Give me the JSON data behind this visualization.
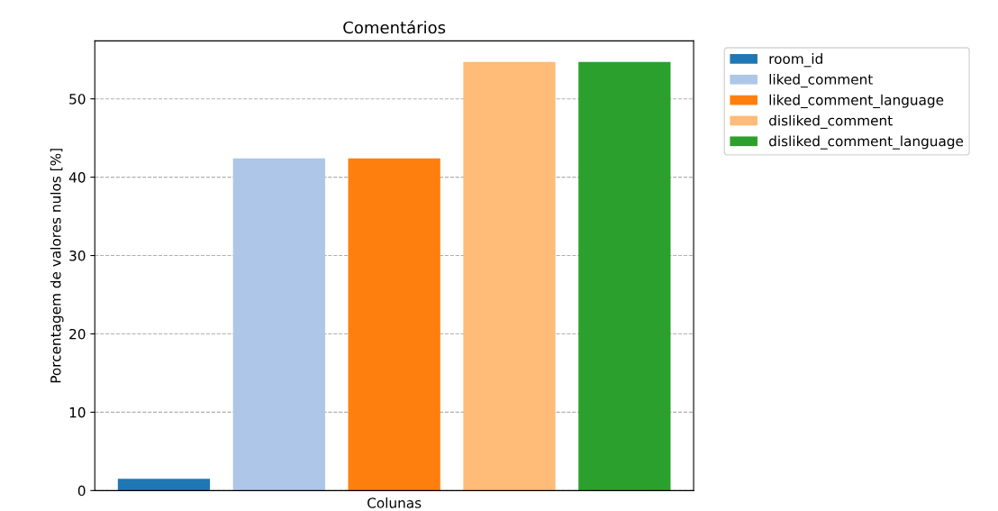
{
  "chart_data": {
    "type": "bar",
    "title": "Comentários",
    "xlabel": "Colunas",
    "ylabel": "Porcentagem de valores nulos [%]",
    "categories": [
      null,
      null,
      null,
      null,
      null
    ],
    "series": [
      {
        "name": "room_id",
        "color": "#1f77b4",
        "values": [
          1.5,
          null,
          null,
          null,
          null
        ]
      },
      {
        "name": "liked_comment",
        "color": "#aec7e8",
        "values": [
          null,
          42.4,
          null,
          null,
          null
        ]
      },
      {
        "name": "liked_comment_language",
        "color": "#ff7f0e",
        "values": [
          null,
          null,
          42.4,
          null,
          null
        ]
      },
      {
        "name": "disliked_comment",
        "color": "#ffbb78",
        "values": [
          null,
          null,
          null,
          54.7,
          null
        ]
      },
      {
        "name": "disliked_comment_language",
        "color": "#2ca02c",
        "values": [
          null,
          null,
          null,
          null,
          54.7
        ]
      }
    ],
    "ylim": [
      0,
      57.4
    ],
    "yticks": [
      0,
      10,
      20,
      30,
      40,
      50
    ],
    "grid": "y",
    "legend": "top right"
  }
}
